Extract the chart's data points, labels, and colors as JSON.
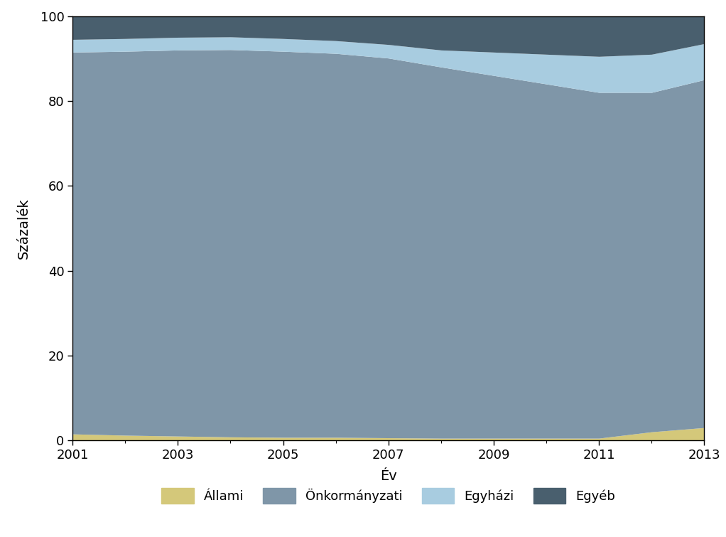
{
  "years": [
    2001,
    2002,
    2003,
    2004,
    2005,
    2006,
    2007,
    2008,
    2009,
    2010,
    2011,
    2012,
    2013
  ],
  "allami": [
    1.5,
    1.2,
    1.0,
    0.8,
    0.7,
    0.7,
    0.6,
    0.5,
    0.5,
    0.5,
    0.5,
    2.0,
    3.0
  ],
  "onkormanyzati": [
    90.0,
    90.5,
    91.0,
    91.3,
    91.0,
    90.5,
    89.5,
    87.5,
    85.5,
    83.5,
    81.5,
    80.0,
    82.0
  ],
  "egyhazi": [
    3.0,
    3.0,
    3.0,
    3.0,
    3.0,
    3.0,
    3.2,
    4.0,
    5.5,
    7.0,
    8.5,
    9.0,
    8.5
  ],
  "egyeb": [
    5.5,
    5.3,
    5.0,
    4.9,
    5.3,
    5.8,
    6.7,
    8.0,
    8.5,
    9.0,
    9.5,
    9.0,
    6.5
  ],
  "colors": {
    "allami": "#d4c87a",
    "onkormanyzati": "#7f96a8",
    "egyhazi": "#a8cce0",
    "egyeb": "#495f6e"
  },
  "legend_labels": [
    "Állami",
    "Önkormányzati",
    "Egyházi",
    "Egyéb"
  ],
  "xlabel": "Év",
  "ylabel": "Százalék",
  "ylim": [
    0,
    100
  ],
  "xlim": [
    2001,
    2013
  ],
  "xticks": [
    2001,
    2003,
    2005,
    2007,
    2009,
    2011,
    2013
  ],
  "yticks": [
    0,
    20,
    40,
    60,
    80,
    100
  ],
  "plot_bg_color": "#ffffff",
  "fig_bg_color": "#ffffff",
  "frame_color": "#000000"
}
